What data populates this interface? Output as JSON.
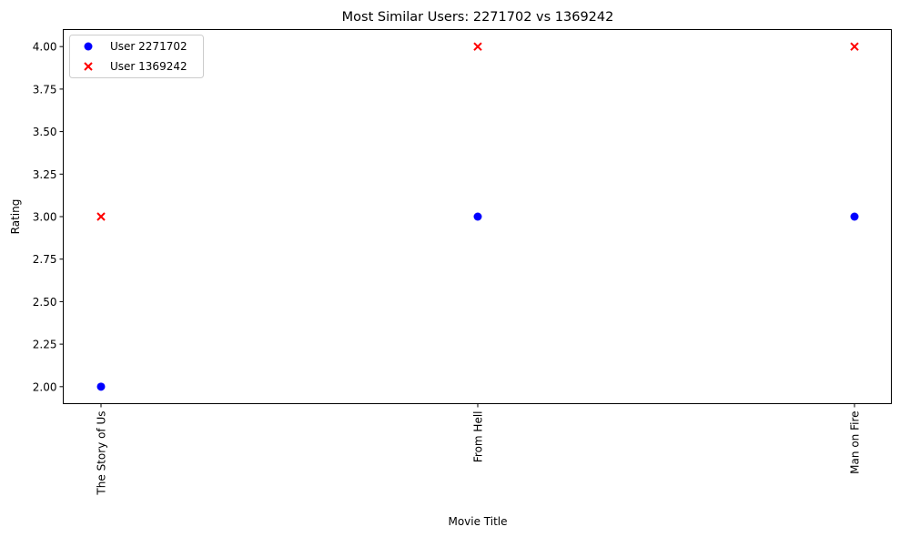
{
  "chart_data": {
    "type": "scatter",
    "title": "Most Similar Users: 2271702 vs 1369242",
    "xlabel": "Movie Title",
    "ylabel": "Rating",
    "categories": [
      "The Story of Us",
      "From Hell",
      "Man on Fire"
    ],
    "ylim": [
      1.9,
      4.1
    ],
    "yticks": [
      "2.00",
      "2.25",
      "2.50",
      "2.75",
      "3.00",
      "3.25",
      "3.50",
      "3.75",
      "4.00"
    ],
    "grid": false,
    "legend_position": "top-left",
    "series": [
      {
        "name": "User 2271702",
        "marker": "circle",
        "color": "#0000ff",
        "values": [
          2,
          3,
          3
        ]
      },
      {
        "name": "User 1369242",
        "marker": "x",
        "color": "#ff0000",
        "values": [
          3,
          4,
          4
        ]
      }
    ]
  }
}
